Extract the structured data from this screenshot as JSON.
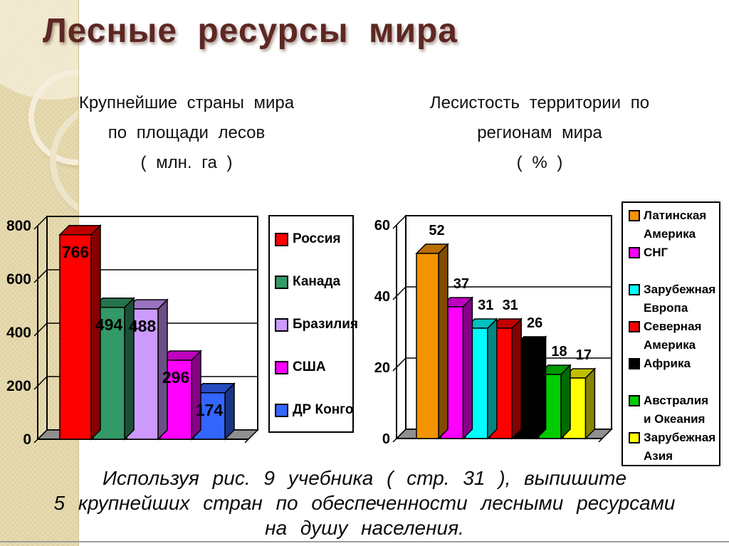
{
  "title": "Лесные ресурсы мира",
  "theme": {
    "title_color": "#5e2723",
    "sidebar_color": "#e5d8ab",
    "text_color": "#0a0a0a",
    "floor_color": "#8f8f8f"
  },
  "chart_data": [
    {
      "type": "bar",
      "projection": "3d",
      "title": "Крупнейшие страны мира по площади лесов (млн. га)",
      "title_lines": [
        "Крупнейшие страны мира",
        "по площади лесов",
        "( млн. га )"
      ],
      "categories": [
        "Россия",
        "Канада",
        "Бразилия",
        "США",
        "ДР Конго"
      ],
      "values": [
        766,
        494,
        488,
        296,
        174
      ],
      "colors": [
        "#ff0000",
        "#339966",
        "#cc99ff",
        "#ff00ff",
        "#3366ff"
      ],
      "ylabel": "",
      "xlabel": "",
      "ylim": [
        0,
        800
      ],
      "yticks": [
        0,
        200,
        400,
        600,
        800
      ],
      "grid": true,
      "legend_position": "right",
      "value_label_position": "inside-top"
    },
    {
      "type": "bar",
      "projection": "3d",
      "title": "Лесистость территории по регионам мира (%)",
      "title_lines": [
        "Лесистость территории по",
        "регионам мира",
        "( % )"
      ],
      "categories": [
        "Латинская Америка",
        "СНГ",
        "Зарубежная Европа",
        "Северная Америка",
        "Африка",
        "Австралия и Океания",
        "Зарубежная Азия"
      ],
      "values": [
        52,
        37,
        31,
        31,
        26,
        18,
        17
      ],
      "colors": [
        "#f59300",
        "#ff00ff",
        "#00ffff",
        "#ff0000",
        "#000000",
        "#00cc00",
        "#ffff00"
      ],
      "ylabel": "",
      "xlabel": "",
      "ylim": [
        0,
        60
      ],
      "yticks": [
        0,
        20,
        40,
        60
      ],
      "grid": true,
      "legend_position": "right",
      "value_label_position": "above"
    }
  ],
  "task": {
    "lines": [
      "Используя рис. 9 учебника ( стр. 31 ), выпишите",
      "5 крупнейших стран по обеспеченности лесными ресурсами",
      "на душу населения."
    ]
  }
}
